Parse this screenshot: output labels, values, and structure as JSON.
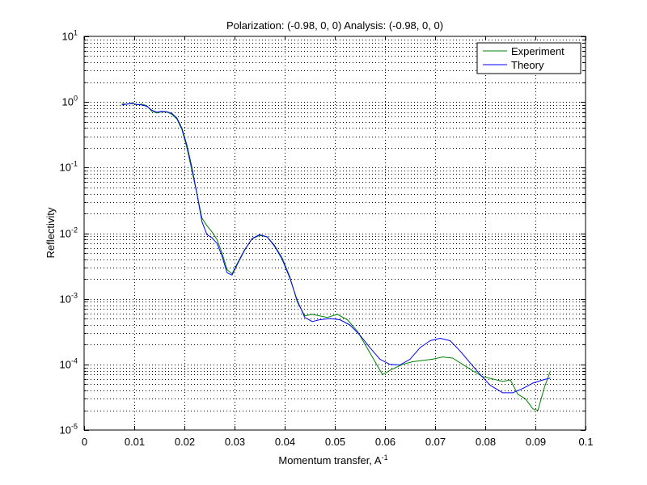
{
  "chart_data": {
    "type": "line",
    "title": "Polarization: (-0.98, 0, 0) Analysis: (-0.98, 0, 0)",
    "xlabel": "Momentum transfer, A",
    "xlabel_sup": "-1",
    "ylabel": "Reflectivity",
    "xlim": [
      0,
      0.1
    ],
    "ylim": [
      1e-05,
      10
    ],
    "yscale": "log",
    "grid": true,
    "legend_position": "top-right",
    "x_ticks": [
      "0",
      "0.01",
      "0.02",
      "0.03",
      "0.04",
      "0.05",
      "0.06",
      "0.07",
      "0.08",
      "0.09",
      "0.1"
    ],
    "y_ticks": [
      {
        "base": "10",
        "exp": "-5"
      },
      {
        "base": "10",
        "exp": "-4"
      },
      {
        "base": "10",
        "exp": "-3"
      },
      {
        "base": "10",
        "exp": "-2"
      },
      {
        "base": "10",
        "exp": "-1"
      },
      {
        "base": "10",
        "exp": "0"
      },
      {
        "base": "10",
        "exp": "1"
      }
    ],
    "series": [
      {
        "name": "Experiment",
        "color": "#008000",
        "points": [
          [
            0.0075,
            0.95
          ],
          [
            0.0085,
            0.92
          ],
          [
            0.0095,
            0.97
          ],
          [
            0.0105,
            0.9
          ],
          [
            0.0115,
            0.93
          ],
          [
            0.0125,
            0.88
          ],
          [
            0.0135,
            0.72
          ],
          [
            0.0145,
            0.68
          ],
          [
            0.0155,
            0.71
          ],
          [
            0.0165,
            0.7
          ],
          [
            0.0175,
            0.65
          ],
          [
            0.0185,
            0.55
          ],
          [
            0.0195,
            0.38
          ],
          [
            0.0205,
            0.2
          ],
          [
            0.0215,
            0.09
          ],
          [
            0.0225,
            0.04
          ],
          [
            0.0235,
            0.017
          ],
          [
            0.0245,
            0.013
          ],
          [
            0.0255,
            0.0105
          ],
          [
            0.0265,
            0.008
          ],
          [
            0.0275,
            0.005
          ],
          [
            0.0285,
            0.0028
          ],
          [
            0.0295,
            0.0024
          ],
          [
            0.0305,
            0.0034
          ],
          [
            0.032,
            0.0056
          ],
          [
            0.0335,
            0.0082
          ],
          [
            0.035,
            0.0093
          ],
          [
            0.0365,
            0.0088
          ],
          [
            0.038,
            0.0065
          ],
          [
            0.0395,
            0.0042
          ],
          [
            0.041,
            0.0022
          ],
          [
            0.0425,
            0.0009
          ],
          [
            0.044,
            0.00055
          ],
          [
            0.0455,
            0.00058
          ],
          [
            0.047,
            0.00055
          ],
          [
            0.0485,
            0.00052
          ],
          [
            0.0505,
            0.00058
          ],
          [
            0.0525,
            0.00048
          ],
          [
            0.0545,
            0.00032
          ],
          [
            0.057,
            0.00015
          ],
          [
            0.0595,
            7e-05
          ],
          [
            0.0615,
            8.5e-05
          ],
          [
            0.0635,
            0.0001
          ],
          [
            0.0655,
            0.00011
          ],
          [
            0.0675,
            0.000115
          ],
          [
            0.0695,
            0.00012
          ],
          [
            0.0715,
            0.00013
          ],
          [
            0.0735,
            0.000125
          ],
          [
            0.0755,
            0.0001
          ],
          [
            0.0775,
            8e-05
          ],
          [
            0.0795,
            6.5e-05
          ],
          [
            0.0815,
            6e-05
          ],
          [
            0.0835,
            5.5e-05
          ],
          [
            0.085,
            5.8e-05
          ],
          [
            0.0865,
            3.5e-05
          ],
          [
            0.088,
            3e-05
          ],
          [
            0.0895,
            2.1e-05
          ],
          [
            0.0905,
            2e-05
          ],
          [
            0.0918,
            4.5e-05
          ],
          [
            0.093,
            8e-05
          ]
        ]
      },
      {
        "name": "Theory",
        "color": "#0000ff",
        "points": [
          [
            0.0075,
            0.9
          ],
          [
            0.0085,
            0.93
          ],
          [
            0.0095,
            0.95
          ],
          [
            0.0105,
            0.92
          ],
          [
            0.0115,
            0.9
          ],
          [
            0.0125,
            0.86
          ],
          [
            0.0135,
            0.75
          ],
          [
            0.0145,
            0.7
          ],
          [
            0.0155,
            0.72
          ],
          [
            0.0165,
            0.71
          ],
          [
            0.0175,
            0.67
          ],
          [
            0.0185,
            0.57
          ],
          [
            0.0195,
            0.4
          ],
          [
            0.0205,
            0.22
          ],
          [
            0.0215,
            0.1
          ],
          [
            0.0225,
            0.04
          ],
          [
            0.0235,
            0.015
          ],
          [
            0.0245,
            0.0095
          ],
          [
            0.0255,
            0.0085
          ],
          [
            0.0265,
            0.007
          ],
          [
            0.0275,
            0.0045
          ],
          [
            0.0285,
            0.0025
          ],
          [
            0.0295,
            0.0023
          ],
          [
            0.0305,
            0.0033
          ],
          [
            0.032,
            0.0055
          ],
          [
            0.0335,
            0.0083
          ],
          [
            0.035,
            0.0095
          ],
          [
            0.0365,
            0.0088
          ],
          [
            0.038,
            0.0063
          ],
          [
            0.0395,
            0.004
          ],
          [
            0.041,
            0.0021
          ],
          [
            0.0425,
            0.00095
          ],
          [
            0.044,
            0.00052
          ],
          [
            0.0455,
            0.00045
          ],
          [
            0.047,
            0.00048
          ],
          [
            0.049,
            0.0005
          ],
          [
            0.051,
            0.00048
          ],
          [
            0.053,
            0.0004
          ],
          [
            0.055,
            0.00028
          ],
          [
            0.057,
            0.00018
          ],
          [
            0.059,
            0.00012
          ],
          [
            0.061,
            0.0001
          ],
          [
            0.063,
            9.8e-05
          ],
          [
            0.065,
            0.00012
          ],
          [
            0.067,
            0.00018
          ],
          [
            0.069,
            0.00023
          ],
          [
            0.071,
            0.00025
          ],
          [
            0.073,
            0.00023
          ],
          [
            0.075,
            0.00016
          ],
          [
            0.077,
            0.000105
          ],
          [
            0.079,
            7e-05
          ],
          [
            0.081,
            4.8e-05
          ],
          [
            0.0835,
            3.7e-05
          ],
          [
            0.0855,
            3.7e-05
          ],
          [
            0.0875,
            4.3e-05
          ],
          [
            0.0895,
            5.2e-05
          ],
          [
            0.0915,
            5.8e-05
          ],
          [
            0.093,
            6.2e-05
          ]
        ]
      }
    ]
  }
}
